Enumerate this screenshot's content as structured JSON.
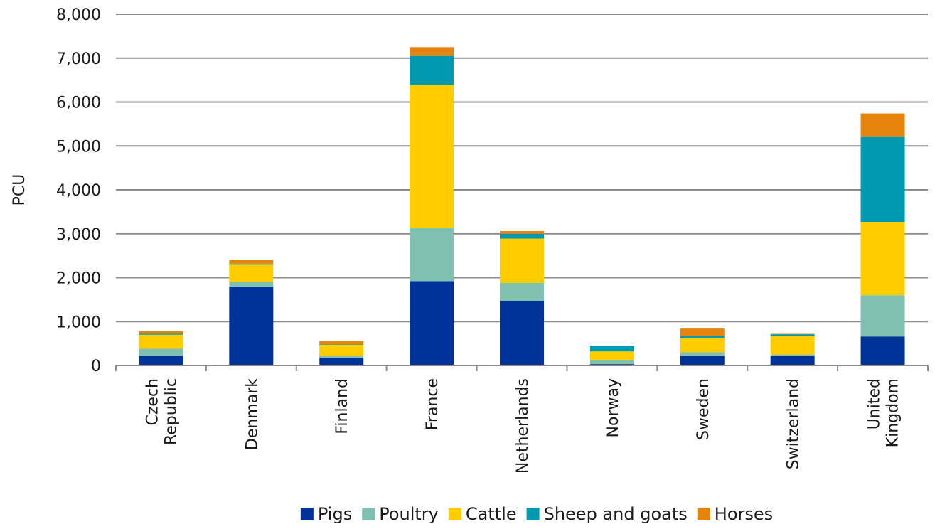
{
  "chart_data": {
    "type": "bar",
    "stacked": true,
    "ylabel": "PCU",
    "xlabel": "",
    "ylim": [
      0,
      8000
    ],
    "yticks": [
      0,
      1000,
      2000,
      3000,
      4000,
      5000,
      6000,
      7000,
      8000
    ],
    "ytick_labels": [
      "0",
      "1,000",
      "2,000",
      "3,000",
      "4,000",
      "5,000",
      "6,000",
      "7,000",
      "8,000"
    ],
    "grid": true,
    "legend_position": "bottom",
    "categories": [
      [
        "Czech",
        "Republic"
      ],
      [
        "Denmark"
      ],
      [
        "Finland"
      ],
      [
        "France"
      ],
      [
        "Netherlands"
      ],
      [
        "Norway"
      ],
      [
        "Sweden"
      ],
      [
        "Switzerland"
      ],
      [
        "United",
        "Kingdom"
      ]
    ],
    "series": [
      {
        "name": "Pigs",
        "color": "#003399",
        "values": [
          220,
          1800,
          180,
          1920,
          1470,
          30,
          220,
          220,
          660
        ]
      },
      {
        "name": "Poultry",
        "color": "#80C0B0",
        "values": [
          160,
          110,
          40,
          1210,
          410,
          90,
          80,
          30,
          940
        ]
      },
      {
        "name": "Cattle",
        "color": "#FFCC00",
        "values": [
          320,
          400,
          250,
          3260,
          1010,
          200,
          320,
          420,
          1670
        ]
      },
      {
        "name": "Sheep and goats",
        "color": "#0099B0",
        "values": [
          20,
          10,
          10,
          660,
          110,
          130,
          50,
          40,
          1950
        ]
      },
      {
        "name": "Horses",
        "color": "#E5840A",
        "values": [
          60,
          90,
          70,
          200,
          60,
          0,
          170,
          10,
          520
        ]
      }
    ]
  }
}
